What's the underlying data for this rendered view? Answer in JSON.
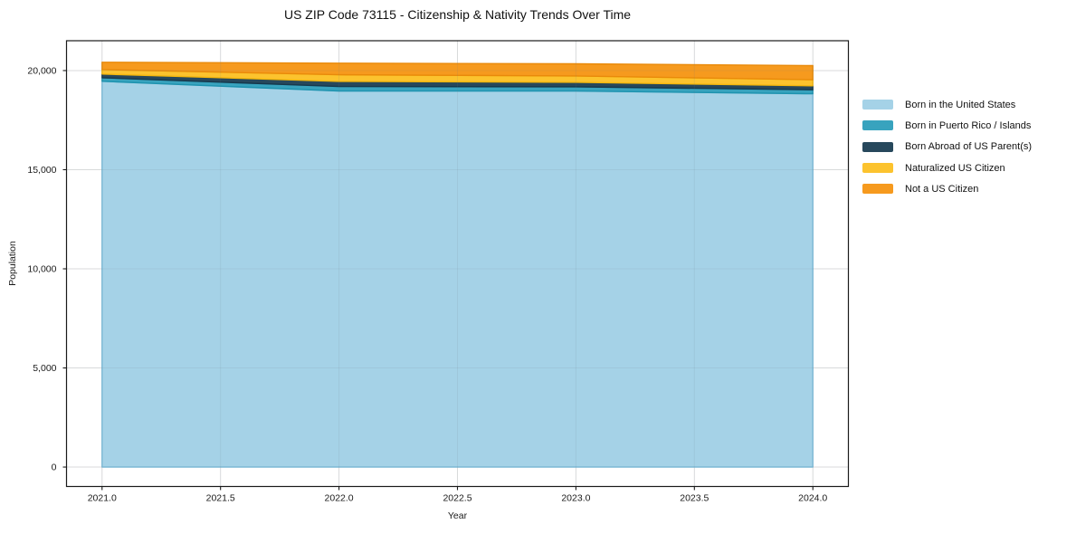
{
  "figure": {
    "title": "US ZIP Code 73115 - Citizenship & Nativity Trends Over Time",
    "xlabel": "Year",
    "ylabel": "Population"
  },
  "chart_data": {
    "type": "area",
    "stacked": true,
    "title": "US ZIP Code 73115 - Citizenship & Nativity Trends Over Time",
    "xlabel": "Year",
    "ylabel": "Population",
    "x": [
      2021,
      2022,
      2023,
      2024
    ],
    "series": [
      {
        "name": "Born in the United States",
        "color": "#A5D2E7",
        "edge": "#7EBEDC",
        "values": [
          19460,
          18965,
          18965,
          18830
        ]
      },
      {
        "name": "Born in Puerto Rico / Islands",
        "color": "#38A3BE",
        "edge": "#1E93AF",
        "values": [
          180,
          230,
          215,
          200
        ]
      },
      {
        "name": "Born Abroad of US Parent(s)",
        "color": "#27485C",
        "edge": "#16394D",
        "values": [
          185,
          260,
          230,
          200
        ]
      },
      {
        "name": "Naturalized US Citizen",
        "color": "#FCC32E",
        "edge": "#F5B70D",
        "values": [
          230,
          335,
          320,
          305
        ]
      },
      {
        "name": "Not a US Citizen",
        "color": "#F69A1E",
        "edge": "#E98A0A",
        "values": [
          365,
          585,
          610,
          715
        ]
      }
    ],
    "xlim": [
      2020.85,
      2024.15
    ],
    "ylim": [
      -980,
      21505
    ],
    "xticks": {
      "values": [
        2021.0,
        2021.5,
        2022.0,
        2022.5,
        2023.0,
        2023.5,
        2024.0
      ],
      "labels": [
        "2021.0",
        "2021.5",
        "2022.0",
        "2022.5",
        "2023.0",
        "2023.5",
        "2024.0"
      ]
    },
    "yticks": {
      "values": [
        0,
        5000,
        10000,
        15000,
        20000
      ],
      "labels": [
        "0",
        "5,000",
        "10,000",
        "15,000",
        "20,000"
      ]
    },
    "grid": true,
    "legend_position": "right-outside"
  },
  "style": {
    "grid_color": "#E8E8E8",
    "grid_overlay": "rgba(110,120,130,0.12)",
    "spine_color": "#1a1a1a",
    "text_color": "#1a1a1a"
  }
}
